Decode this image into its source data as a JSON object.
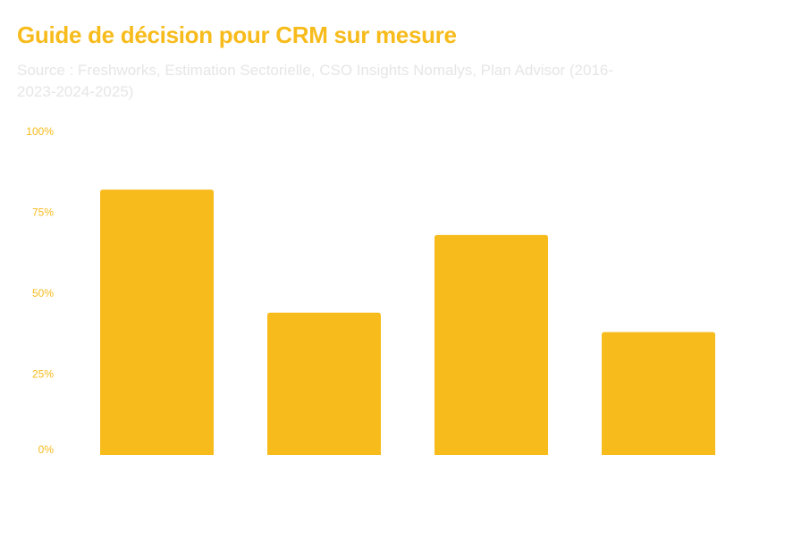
{
  "title": "Guide de décision pour CRM sur mesure",
  "source": "Source : Freshworks, Estimation Sectorielle, CSO Insights Nomalys, Plan Advisor (2016-2023-2024-2025)",
  "colors": {
    "bar": "#F7BB1C",
    "title": "#F7BB1C",
    "source": "#E6E6E6"
  },
  "chart_data": {
    "type": "bar",
    "title": "Guide de décision pour CRM sur mesure",
    "categories": [
      "",
      "",
      "",
      ""
    ],
    "values": [
      82,
      44,
      68,
      38
    ],
    "y_unit": "%",
    "ylim": [
      0,
      100
    ],
    "y_ticks": [
      {
        "value": 0,
        "label": "0%"
      },
      {
        "value": 25,
        "label": "25%"
      },
      {
        "value": 50,
        "label": "50%"
      },
      {
        "value": 75,
        "label": "75%"
      },
      {
        "value": 100,
        "label": "100%"
      }
    ],
    "grid": false,
    "legend": "none"
  }
}
